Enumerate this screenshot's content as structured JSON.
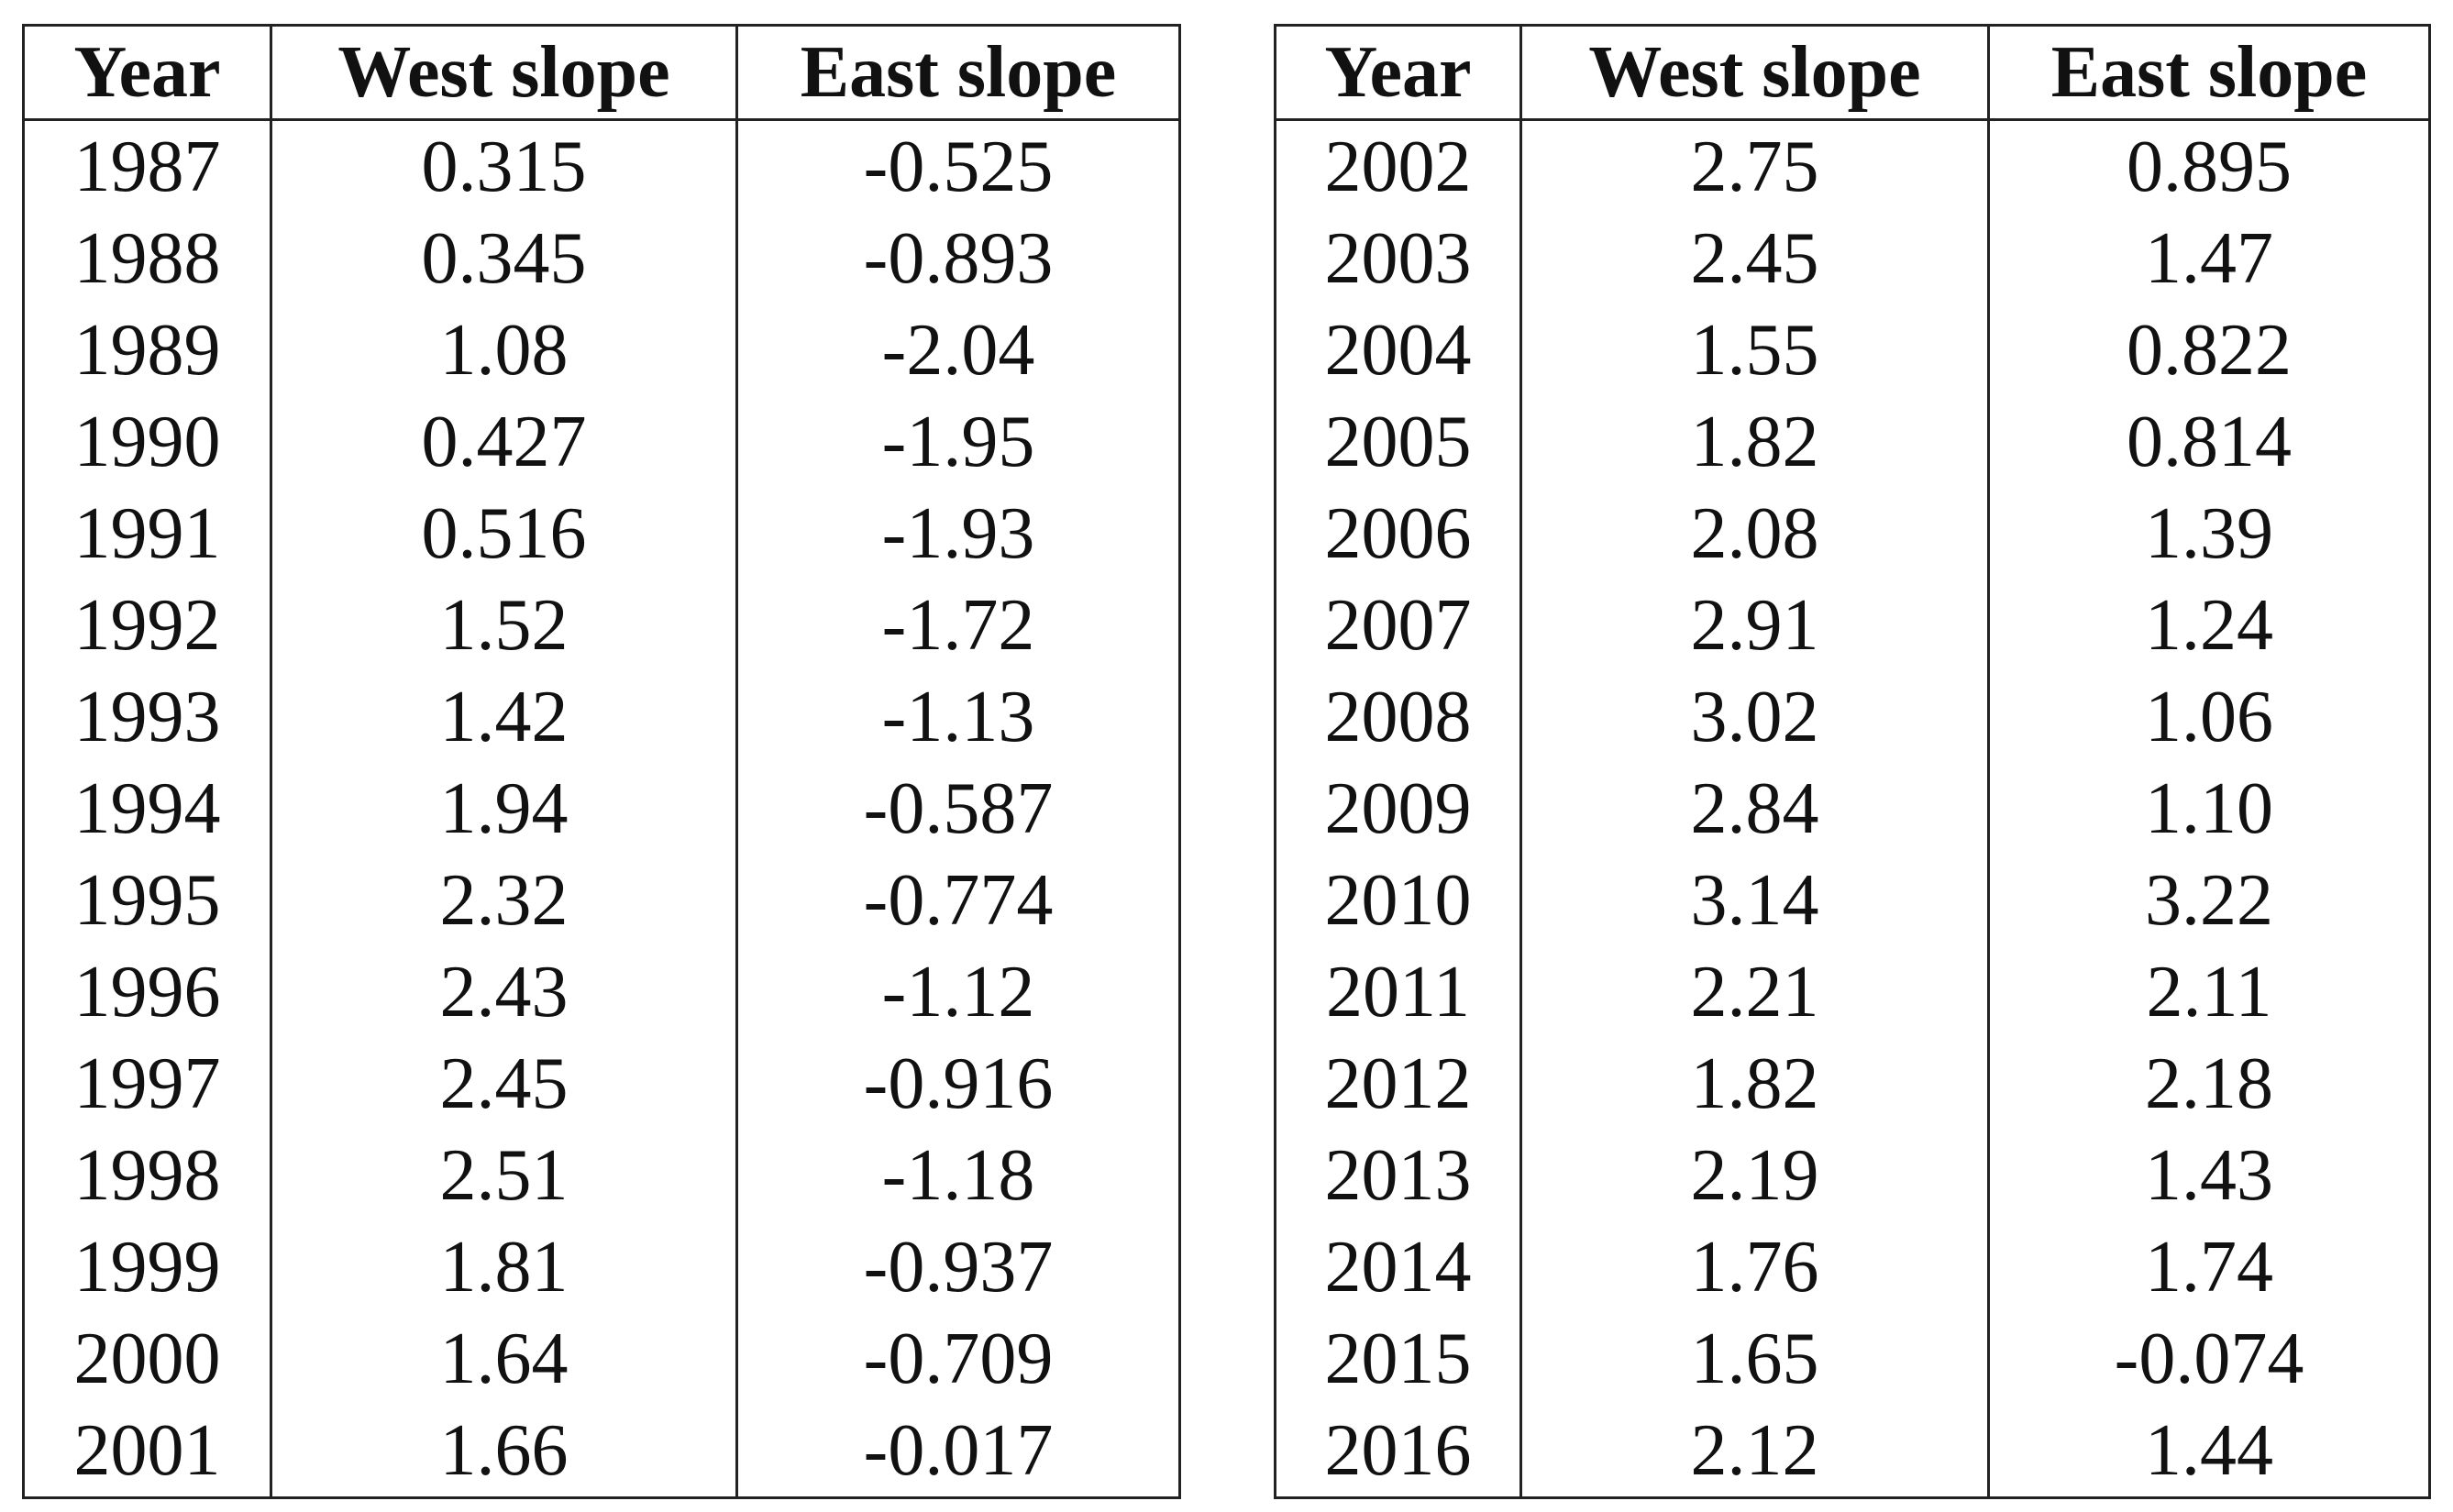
{
  "tables": [
    {
      "header": [
        "Year",
        "West slope",
        "East slope"
      ],
      "rows": [
        [
          "1987",
          "0.315",
          "-0.525"
        ],
        [
          "1988",
          "0.345",
          "-0.893"
        ],
        [
          "1989",
          "1.08",
          "-2.04"
        ],
        [
          "1990",
          "0.427",
          "-1.95"
        ],
        [
          "1991",
          "0.516",
          "-1.93"
        ],
        [
          "1992",
          "1.52",
          "-1.72"
        ],
        [
          "1993",
          "1.42",
          "-1.13"
        ],
        [
          "1994",
          "1.94",
          "-0.587"
        ],
        [
          "1995",
          "2.32",
          "-0.774"
        ],
        [
          "1996",
          "2.43",
          "-1.12"
        ],
        [
          "1997",
          "2.45",
          "-0.916"
        ],
        [
          "1998",
          "2.51",
          "-1.18"
        ],
        [
          "1999",
          "1.81",
          "-0.937"
        ],
        [
          "2000",
          "1.64",
          "-0.709"
        ],
        [
          "2001",
          "1.66",
          "-0.017"
        ]
      ]
    },
    {
      "header": [
        "Year",
        "West slope",
        "East slope"
      ],
      "rows": [
        [
          "2002",
          "2.75",
          "0.895"
        ],
        [
          "2003",
          "2.45",
          "1.47"
        ],
        [
          "2004",
          "1.55",
          "0.822"
        ],
        [
          "2005",
          "1.82",
          "0.814"
        ],
        [
          "2006",
          "2.08",
          "1.39"
        ],
        [
          "2007",
          "2.91",
          "1.24"
        ],
        [
          "2008",
          "3.02",
          "1.06"
        ],
        [
          "2009",
          "2.84",
          "1.10"
        ],
        [
          "2010",
          "3.14",
          "3.22"
        ],
        [
          "2011",
          "2.21",
          "2.11"
        ],
        [
          "2012",
          "1.82",
          "2.18"
        ],
        [
          "2013",
          "2.19",
          "1.43"
        ],
        [
          "2014",
          "1.76",
          "1.74"
        ],
        [
          "2015",
          "1.65",
          "-0.074"
        ],
        [
          "2016",
          "2.12",
          "1.44"
        ]
      ]
    }
  ]
}
